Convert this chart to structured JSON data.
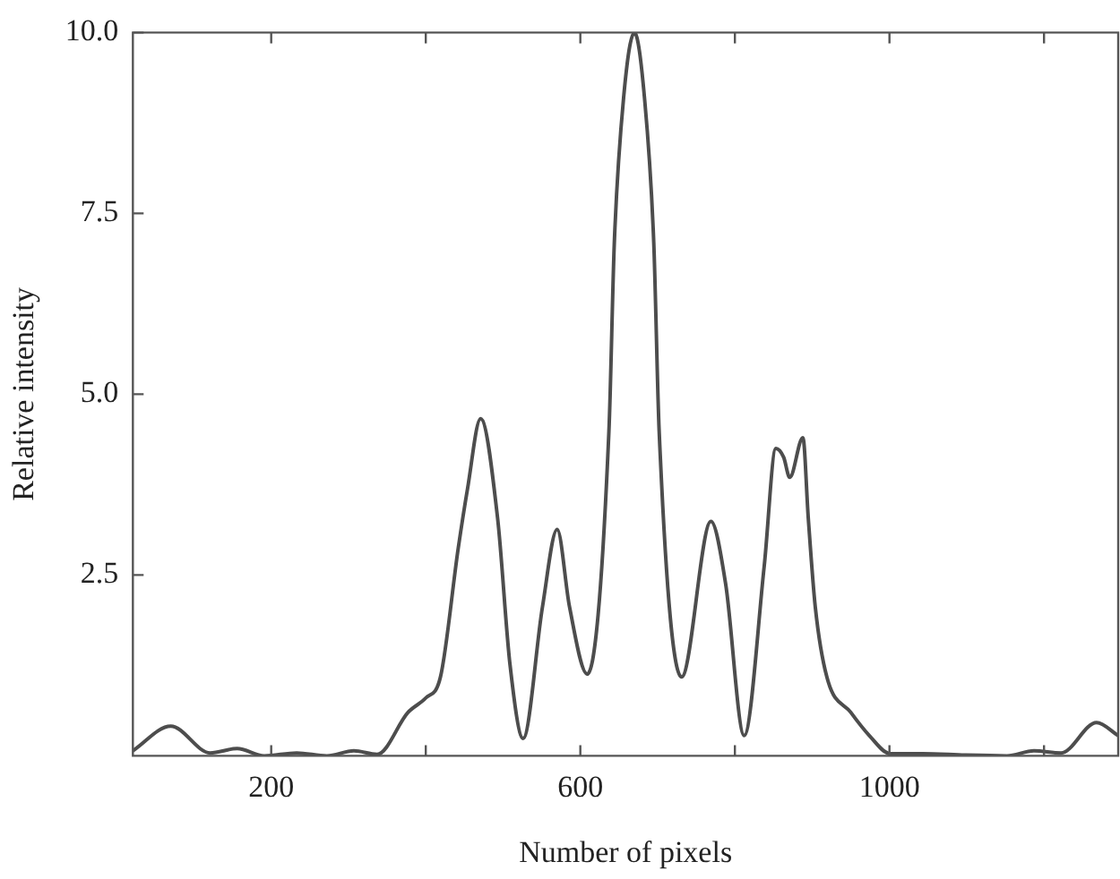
{
  "chart_data": {
    "type": "line",
    "xlabel": "Number of pixels",
    "ylabel": "Relative intensity",
    "x": [
      21,
      70,
      121,
      156,
      191,
      233,
      272,
      307,
      337,
      377,
      400,
      419,
      442,
      454,
      471,
      493,
      509,
      526,
      551,
      570,
      586,
      609,
      637,
      644,
      656,
      670,
      683,
      695,
      702,
      731,
      769,
      788,
      812,
      838,
      853,
      863,
      871,
      888,
      895,
      904,
      919,
      950,
      974,
      1001,
      1043,
      1098,
      1152,
      1187,
      1222,
      1268,
      1296
    ],
    "series": [
      {
        "color": "#4d4d4d",
        "values": [
          0.07,
          0.41,
          0.04,
          0.1,
          0,
          0.04,
          0,
          0.07,
          0.02,
          0.6,
          0.8,
          1.09,
          2.87,
          3.69,
          4.66,
          3.28,
          1.26,
          0.24,
          2.06,
          3.13,
          2.06,
          1.13,
          4.49,
          7.1,
          9.1,
          10.0,
          9.1,
          7.1,
          4.49,
          1.09,
          3.24,
          2.38,
          0.28,
          2.63,
          4.25,
          4.13,
          3.85,
          4.4,
          3.28,
          2.06,
          1.09,
          0.6,
          0.28,
          0.03,
          0.03,
          0.01,
          0,
          0.07,
          0.04,
          0.46,
          0.28
        ]
      }
    ],
    "xlim": [
      21,
      1296
    ],
    "xticks": [
      {
        "value": 200,
        "label": "200"
      },
      {
        "value": 400,
        "label": null
      },
      {
        "value": 600,
        "label": "600"
      },
      {
        "value": 800,
        "label": null
      },
      {
        "value": 1000,
        "label": "1000"
      },
      {
        "value": 1200,
        "label": null
      }
    ],
    "ylim": [
      0,
      10
    ],
    "yticks": [
      {
        "value": 2.5,
        "label": "2.5"
      },
      {
        "value": 5,
        "label": "5.0"
      },
      {
        "value": 7.5,
        "label": "7.5"
      },
      {
        "value": 10,
        "label": "10.0"
      }
    ],
    "grid": false,
    "legend": false,
    "marker": "none",
    "line_style": "solid"
  }
}
